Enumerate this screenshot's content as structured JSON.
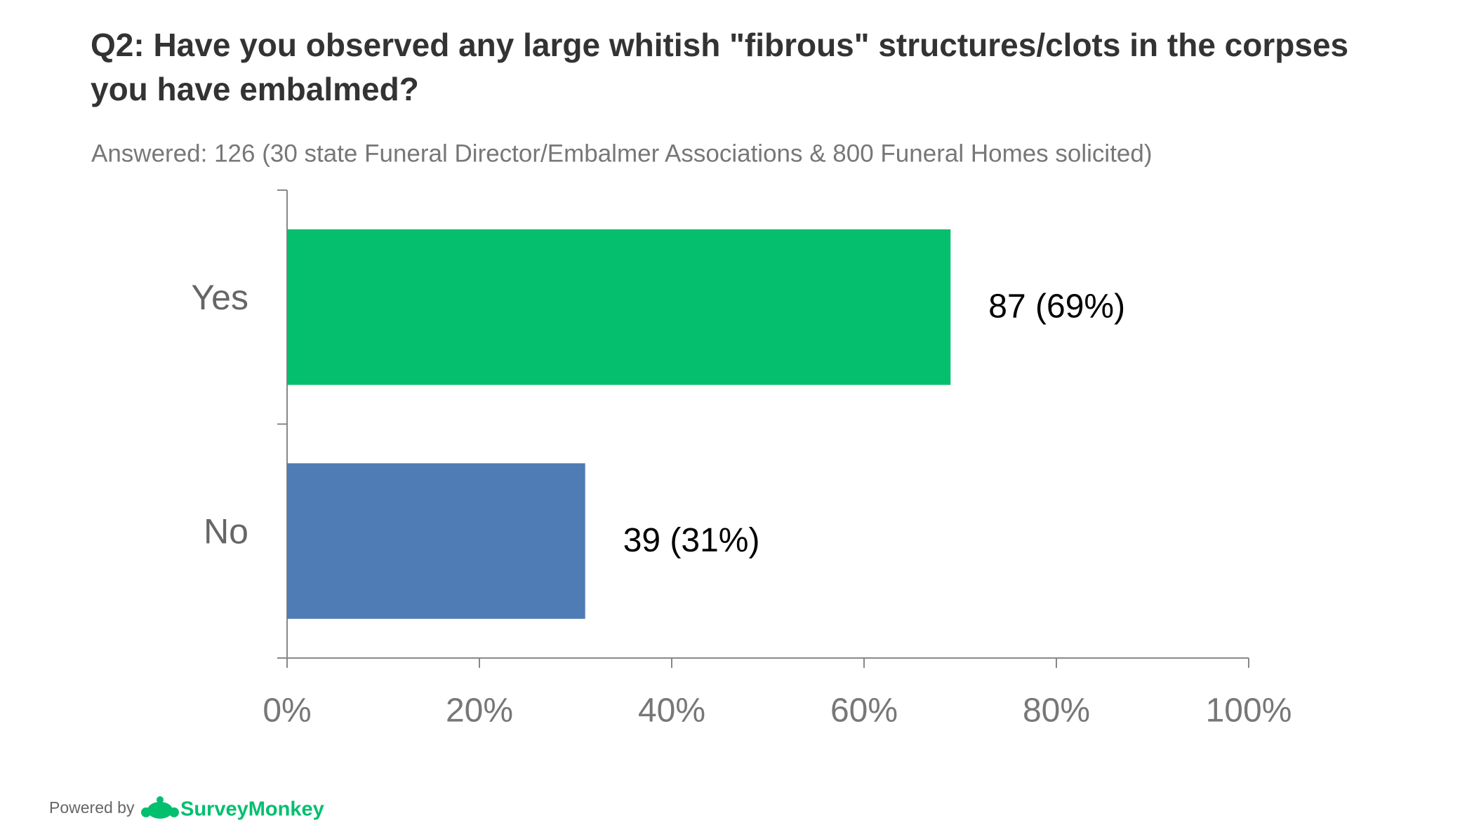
{
  "chart_data": {
    "type": "bar",
    "orientation": "horizontal",
    "title": "Q2: Have you observed any large whitish \"fibrous\" structures/clots in the corpses you have embalmed?",
    "subtitle": "Answered: 126  (30 state Funeral Director/Embalmer Associations & 800 Funeral Homes solicited)",
    "categories": [
      "Yes",
      "No"
    ],
    "values": [
      69,
      31
    ],
    "value_labels": [
      "87  (69%)",
      "39  (31%)"
    ],
    "colors": [
      "#05bf6e",
      "#4f7cb5"
    ],
    "xlim": [
      0,
      100
    ],
    "xticks": [
      {
        "value": 0,
        "label": "0%"
      },
      {
        "value": 20,
        "label": "20%"
      },
      {
        "value": 40,
        "label": "40%"
      },
      {
        "value": 60,
        "label": "60%"
      },
      {
        "value": 80,
        "label": "80%"
      },
      {
        "value": 100,
        "label": "100%"
      }
    ],
    "grid": false
  },
  "footer": {
    "powered_by": "Powered by",
    "brand": "SurveyMonkey"
  }
}
